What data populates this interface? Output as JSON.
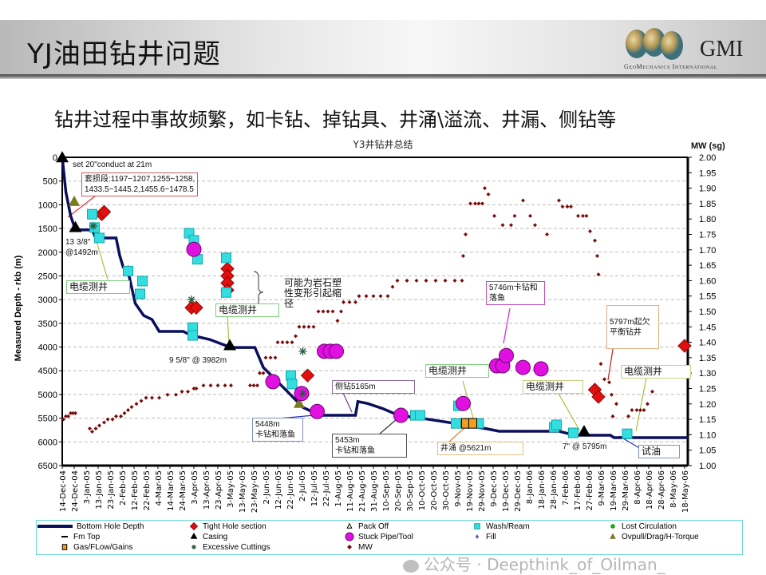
{
  "header": {
    "title": "YJ油田钻井问题",
    "logo_text": "GMI",
    "logo_subtext": "GeoMechanics International"
  },
  "subtitle": "钻井过程中事故频繁，如卡钻、掉钻具、井涌\\溢流、井漏、侧钻等",
  "watermark": "公众号 · Deepthink_of_Oilman_",
  "chart_data": {
    "type": "line",
    "title": "Y3井钻井总结",
    "ylabel": "Measured Depth - rkb (m)",
    "y2label": "MW (sg)",
    "ylim": [
      0,
      6500
    ],
    "y2lim": [
      1.0,
      2.0
    ],
    "yticks": [
      "0",
      "500",
      "1000",
      "1500",
      "2000",
      "2500",
      "3000",
      "3500",
      "4000",
      "4500",
      "5000",
      "5500",
      "6000",
      "6500"
    ],
    "y2ticks": [
      "2.00",
      "1.95",
      "1.90",
      "1.85",
      "1.80",
      "1.75",
      "1.70",
      "1.65",
      "1.60",
      "1.55",
      "1.50",
      "1.45",
      "1.40",
      "1.35",
      "1.30",
      "1.25",
      "1.20",
      "1.15",
      "1.10",
      "1.05",
      "1.00"
    ],
    "x_unit": "days since 14-Dec-04",
    "xticks": [
      "14-Dec-04",
      "24-Dec-04",
      "3-Jan-05",
      "13-Jan-05",
      "23-Jan-05",
      "2-Feb-05",
      "12-Feb-05",
      "22-Feb-05",
      "4-Mar-05",
      "14-Mar-05",
      "24-Mar-05",
      "3-Apr-05",
      "13-Apr-05",
      "23-Apr-05",
      "3-May-05",
      "13-May-05",
      "23-May-05",
      "2-Jun-05",
      "12-Jun-05",
      "22-Jun-05",
      "2-Jul-05",
      "12-Jul-05",
      "22-Jul-05",
      "1-Aug-05",
      "11-Aug-05",
      "21-Aug-05",
      "31-Aug-05",
      "10-Sep-05",
      "20-Sep-05",
      "30-Sep-05",
      "10-Oct-05",
      "20-Oct-05",
      "30-Oct-05",
      "9-Nov-05",
      "19-Nov-05",
      "29-Nov-05",
      "9-Dec-05",
      "19-Dec-05",
      "29-Dec-05",
      "8-Jan-06",
      "18-Jan-06",
      "28-Jan-06",
      "7-Feb-06",
      "17-Feb-06",
      "27-Feb-06",
      "9-Mar-06",
      "19-Mar-06",
      "29-Mar-06",
      "8-Apr-06",
      "18-Apr-06",
      "28-Apr-06",
      "8-May-06",
      "18-May-06"
    ],
    "grid": "horizontal dashed",
    "series": [
      {
        "name": "Bottom Hole Depth",
        "axis": "depth",
        "color": "#0b0f5c",
        "points": [
          [
            0,
            0
          ],
          [
            3,
            724
          ],
          [
            7,
            1230
          ],
          [
            11,
            1530
          ],
          [
            25,
            1530
          ],
          [
            28,
            1700
          ],
          [
            45,
            1700
          ],
          [
            48,
            2070
          ],
          [
            51,
            2320
          ],
          [
            55,
            2410
          ],
          [
            58,
            2745
          ],
          [
            61,
            3080
          ],
          [
            68,
            3335
          ],
          [
            75,
            3420
          ],
          [
            81,
            3670
          ],
          [
            101,
            3670
          ],
          [
            108,
            3755
          ],
          [
            123,
            3840
          ],
          [
            141,
            4010
          ],
          [
            161,
            4010
          ],
          [
            168,
            4430
          ],
          [
            188,
            4935
          ],
          [
            201,
            5270
          ],
          [
            215,
            5440
          ],
          [
            245,
            5440
          ],
          [
            247,
            5150
          ],
          [
            255,
            5190
          ],
          [
            268,
            5300
          ],
          [
            281,
            5440
          ],
          [
            305,
            5520
          ],
          [
            328,
            5610
          ],
          [
            355,
            5725
          ],
          [
            365,
            5775
          ],
          [
            415,
            5775
          ],
          [
            428,
            5860
          ],
          [
            458,
            5860
          ],
          [
            461,
            5910
          ],
          [
            523,
            5910
          ]
        ]
      },
      {
        "name": "MW",
        "axis": "mw",
        "color": "#7a0c0c",
        "points": [
          [
            1,
            1.15
          ],
          [
            3,
            1.16
          ],
          [
            5,
            1.16
          ],
          [
            7,
            1.17
          ],
          [
            9,
            1.17
          ],
          [
            11,
            1.17
          ],
          [
            23,
            1.12
          ],
          [
            25,
            1.11
          ],
          [
            28,
            1.12
          ],
          [
            31,
            1.13
          ],
          [
            35,
            1.14
          ],
          [
            38,
            1.15
          ],
          [
            42,
            1.15
          ],
          [
            45,
            1.16
          ],
          [
            49,
            1.16
          ],
          [
            52,
            1.17
          ],
          [
            55,
            1.18
          ],
          [
            58,
            1.19
          ],
          [
            62,
            1.2
          ],
          [
            66,
            1.21
          ],
          [
            70,
            1.22
          ],
          [
            75,
            1.22
          ],
          [
            81,
            1.22
          ],
          [
            88,
            1.23
          ],
          [
            95,
            1.23
          ],
          [
            100,
            1.24
          ],
          [
            105,
            1.24
          ],
          [
            110,
            1.25
          ],
          [
            112,
            1.25
          ],
          [
            118,
            1.26
          ],
          [
            124,
            1.26
          ],
          [
            130,
            1.26
          ],
          [
            136,
            1.26
          ],
          [
            141,
            1.26
          ],
          [
            157,
            1.26
          ],
          [
            160,
            1.26
          ],
          [
            163,
            1.26
          ],
          [
            165,
            1.3
          ],
          [
            168,
            1.3
          ],
          [
            170,
            1.35
          ],
          [
            174,
            1.35
          ],
          [
            178,
            1.35
          ],
          [
            180,
            1.4
          ],
          [
            184,
            1.4
          ],
          [
            188,
            1.4
          ],
          [
            192,
            1.4
          ],
          [
            195,
            1.42
          ],
          [
            198,
            1.45
          ],
          [
            202,
            1.45
          ],
          [
            206,
            1.45
          ],
          [
            210,
            1.45
          ],
          [
            214,
            1.5
          ],
          [
            218,
            1.5
          ],
          [
            222,
            1.5
          ],
          [
            226,
            1.5
          ],
          [
            230,
            1.47
          ],
          [
            233,
            1.5
          ],
          [
            235,
            1.53
          ],
          [
            240,
            1.53
          ],
          [
            245,
            1.53
          ],
          [
            248,
            1.55
          ],
          [
            254,
            1.55
          ],
          [
            260,
            1.55
          ],
          [
            266,
            1.55
          ],
          [
            272,
            1.55
          ],
          [
            276,
            1.58
          ],
          [
            280,
            1.6
          ],
          [
            288,
            1.6
          ],
          [
            296,
            1.6
          ],
          [
            304,
            1.6
          ],
          [
            312,
            1.6
          ],
          [
            320,
            1.6
          ],
          [
            328,
            1.6
          ],
          [
            334,
            1.6
          ],
          [
            335,
            1.68
          ],
          [
            337,
            1.75
          ],
          [
            341,
            1.85
          ],
          [
            345,
            1.85
          ],
          [
            348,
            1.85
          ],
          [
            351,
            1.85
          ],
          [
            353,
            1.9
          ],
          [
            356,
            1.88
          ],
          [
            361,
            1.81
          ],
          [
            368,
            1.78
          ],
          [
            375,
            1.78
          ],
          [
            378,
            1.81
          ],
          [
            385,
            1.86
          ],
          [
            391,
            1.81
          ],
          [
            395,
            1.78
          ],
          [
            405,
            1.75
          ],
          [
            415,
            1.86
          ],
          [
            418,
            1.84
          ],
          [
            422,
            1.84
          ],
          [
            425,
            1.84
          ],
          [
            431,
            1.81
          ],
          [
            435,
            1.81
          ],
          [
            438,
            1.81
          ],
          [
            441,
            1.76
          ],
          [
            445,
            1.73
          ],
          [
            447,
            1.68
          ],
          [
            448,
            1.62
          ],
          [
            450,
            1.33
          ],
          [
            453,
            1.28
          ],
          [
            457,
            1.27
          ],
          [
            459,
            1.23
          ],
          [
            460,
            1.16
          ],
          [
            463,
            1.2
          ],
          [
            473,
            1.16
          ],
          [
            476,
            1.18
          ],
          [
            480,
            1.18
          ],
          [
            483,
            1.18
          ],
          [
            486,
            1.18
          ],
          [
            489,
            1.2
          ],
          [
            493,
            1.24
          ]
        ]
      }
    ],
    "events": [
      {
        "type": "casing",
        "day": 0,
        "depth": 21
      },
      {
        "type": "casing",
        "day": 11,
        "depth": 1492
      },
      {
        "type": "casing",
        "day": 140,
        "depth": 3982
      },
      {
        "type": "casing",
        "day": 436,
        "depth": 5795
      },
      {
        "type": "overpull",
        "day": 10,
        "depth": 940
      },
      {
        "type": "overpull",
        "day": 55,
        "depth": 2400
      },
      {
        "type": "overpull",
        "day": 198,
        "depth": 5200
      },
      {
        "type": "tight",
        "day": 33,
        "depth": 1200
      },
      {
        "type": "tight",
        "day": 35,
        "depth": 1150
      },
      {
        "type": "tight",
        "day": 108,
        "depth": 3170
      },
      {
        "type": "tight",
        "day": 112,
        "depth": 3170
      },
      {
        "type": "tight",
        "day": 138,
        "depth": 2350
      },
      {
        "type": "tight",
        "day": 138,
        "depth": 2500
      },
      {
        "type": "tight",
        "day": 138,
        "depth": 2650
      },
      {
        "type": "tight",
        "day": 138,
        "depth": 2800
      },
      {
        "type": "tight",
        "day": 205,
        "depth": 4600
      },
      {
        "type": "tight",
        "day": 445,
        "depth": 4900
      },
      {
        "type": "tight",
        "day": 448,
        "depth": 5050
      },
      {
        "type": "tight",
        "day": 520,
        "depth": 3975
      },
      {
        "type": "wash",
        "day": 25,
        "depth": 1200
      },
      {
        "type": "wash",
        "day": 27,
        "depth": 1480
      },
      {
        "type": "wash",
        "day": 31,
        "depth": 1700
      },
      {
        "type": "wash",
        "day": 55,
        "depth": 2400
      },
      {
        "type": "wash",
        "day": 65,
        "depth": 2880
      },
      {
        "type": "wash",
        "day": 67,
        "depth": 2610
      },
      {
        "type": "wash",
        "day": 106,
        "depth": 1600
      },
      {
        "type": "wash",
        "day": 110,
        "depth": 1750
      },
      {
        "type": "wash",
        "day": 113,
        "depth": 2150
      },
      {
        "type": "wash",
        "day": 109,
        "depth": 3590
      },
      {
        "type": "wash",
        "day": 109,
        "depth": 3755
      },
      {
        "type": "wash",
        "day": 137,
        "depth": 2120
      },
      {
        "type": "wash",
        "day": 137,
        "depth": 2850
      },
      {
        "type": "wash",
        "day": 191,
        "depth": 4600
      },
      {
        "type": "wash",
        "day": 192,
        "depth": 4780
      },
      {
        "type": "wash",
        "day": 295,
        "depth": 5440
      },
      {
        "type": "wash",
        "day": 299,
        "depth": 5440
      },
      {
        "type": "wash",
        "day": 331,
        "depth": 5240
      },
      {
        "type": "wash",
        "day": 329,
        "depth": 5610
      },
      {
        "type": "wash",
        "day": 348,
        "depth": 5610
      },
      {
        "type": "wash",
        "day": 411,
        "depth": 5690
      },
      {
        "type": "wash",
        "day": 413,
        "depth": 5640
      },
      {
        "type": "wash",
        "day": 427,
        "depth": 5810
      },
      {
        "type": "wash",
        "day": 472,
        "depth": 5830
      },
      {
        "type": "stuck",
        "day": 110,
        "depth": 1940
      },
      {
        "type": "stuck",
        "day": 176,
        "depth": 4730
      },
      {
        "type": "stuck",
        "day": 200,
        "depth": 4980
      },
      {
        "type": "stuck",
        "day": 213,
        "depth": 5360
      },
      {
        "type": "stuck",
        "day": 219,
        "depth": 4090
      },
      {
        "type": "stuck",
        "day": 224,
        "depth": 4090
      },
      {
        "type": "stuck",
        "day": 229,
        "depth": 4090
      },
      {
        "type": "stuck",
        "day": 283,
        "depth": 5440
      },
      {
        "type": "stuck",
        "day": 335,
        "depth": 5190
      },
      {
        "type": "stuck",
        "day": 363,
        "depth": 4395
      },
      {
        "type": "stuck",
        "day": 368,
        "depth": 4395
      },
      {
        "type": "stuck",
        "day": 371,
        "depth": 4180
      },
      {
        "type": "stuck",
        "day": 385,
        "depth": 4430
      },
      {
        "type": "stuck",
        "day": 400,
        "depth": 4460
      },
      {
        "type": "gas",
        "day": 337,
        "depth": 5610
      },
      {
        "type": "gas",
        "day": 343,
        "depth": 5610
      },
      {
        "type": "cuttings",
        "day": 26,
        "depth": 1450
      },
      {
        "type": "cuttings",
        "day": 108,
        "depth": 3000
      },
      {
        "type": "cuttings",
        "day": 201,
        "depth": 4980
      },
      {
        "type": "cuttings",
        "day": 201,
        "depth": 4090
      }
    ],
    "annotations": {
      "conductor": "set 20\"conduct at 21m",
      "casing_damage": "套损段:1197~1207,1255~1258,",
      "casing_damage2": "1433.5~1445.2,1455.6~1478.5",
      "casing_1338": "13 3/8\"",
      "casing_1338b": "@1492m",
      "logging": "电缆测井",
      "plastic": "可能为岩石塑",
      "plastic2": "性变形引起缩",
      "plastic3": "径",
      "casing_958": "9 5/8\" @ 3982m",
      "stuck5448": "5448m",
      "stuck5448b": "卡钻和落鱼",
      "stuck5453": "5453m",
      "stuck5453b": "卡钻和落鱼",
      "sidetrack": "侧钻5165m",
      "stuck5746": "5746m卡钻和",
      "stuck5746b": "落鱼",
      "kick": "井涌  @5621m",
      "casing_7": "7\" @ 5795m",
      "ubd": "5797m起欠",
      "ubd2": "平衡钻井",
      "test": "试油"
    },
    "legend": [
      {
        "label": "Bottom Hole Depth",
        "type": "bhd"
      },
      {
        "label": "Tight Hole section",
        "type": "tight"
      },
      {
        "label": "Pack Off",
        "type": "packoff"
      },
      {
        "label": "Wash/Ream",
        "type": "wash"
      },
      {
        "label": "Lost Circulation",
        "type": "lost"
      },
      {
        "label": "Fm Top",
        "type": "fmtop"
      },
      {
        "label": "Casing",
        "type": "casing"
      },
      {
        "label": "Stuck Pipe/Tool",
        "type": "stuck"
      },
      {
        "label": "Fill",
        "type": "fill"
      },
      {
        "label": "Ovpull/Drag/H-Torque",
        "type": "overpull"
      },
      {
        "label": "Gas/FLow/Gains",
        "type": "gas"
      },
      {
        "label": "Excessive Cuttings",
        "type": "cuttings"
      },
      {
        "label": "MW",
        "type": "mw"
      }
    ],
    "legend_position": "bottom"
  }
}
